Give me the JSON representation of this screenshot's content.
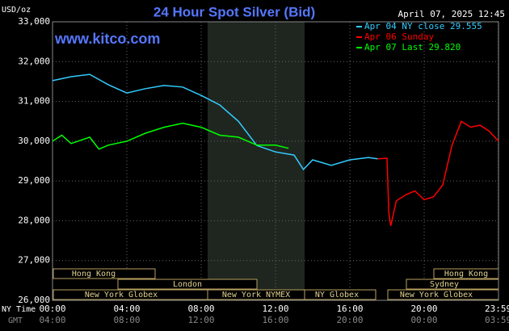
{
  "chart_data": {
    "type": "line",
    "title": "24 Hour Spot Silver (Bid)",
    "timestamp": "April 07, 2025 12:45",
    "watermark": "www.kitco.com",
    "y_label": "USD/oz",
    "x_row_labels": [
      "NY Time",
      "GMT"
    ],
    "xlim": [
      0,
      24
    ],
    "xticks": [
      {
        "value": 0,
        "label": "00:00"
      },
      {
        "value": 4,
        "label": "04:00"
      },
      {
        "value": 8,
        "label": "08:00"
      },
      {
        "value": 12,
        "label": "12:00"
      },
      {
        "value": 16,
        "label": "16:00"
      },
      {
        "value": 20,
        "label": "20:00"
      },
      {
        "value": 23.983,
        "label": "23:59"
      }
    ],
    "xticks_gmt": [
      "04:00",
      "08:00",
      "12:00",
      "16:00",
      "20:00",
      "00:00",
      "03:59"
    ],
    "ylim": [
      26000,
      33000
    ],
    "yticks": [
      {
        "value": 26000,
        "label": "26,000"
      },
      {
        "value": 27000,
        "label": "27,000"
      },
      {
        "value": 28000,
        "label": "28,000"
      },
      {
        "value": 29000,
        "label": "29,000"
      },
      {
        "value": 30000,
        "label": "30,000"
      },
      {
        "value": 31000,
        "label": "31,000"
      },
      {
        "value": 32000,
        "label": "32,000"
      },
      {
        "value": 33000,
        "label": "33,000"
      }
    ],
    "grid": true,
    "sessions": [
      "Hong Kong",
      "London",
      "New York Globex",
      "New York NYMEX",
      "NY Globex",
      "Hong Kong",
      "Sydney",
      "New York Globex"
    ],
    "series": [
      {
        "name": "Apr 04 NY close 29.555",
        "color": "#33ccff",
        "x": [
          0,
          1,
          2,
          3,
          4,
          5,
          6,
          7,
          8,
          9,
          10,
          11,
          12,
          13,
          13.5,
          14,
          15,
          16,
          17,
          17.5
        ],
        "values": [
          31520,
          31620,
          31680,
          31420,
          31210,
          31320,
          31400,
          31360,
          31150,
          30910,
          30500,
          29890,
          29730,
          29650,
          29290,
          29530,
          29390,
          29530,
          29590,
          29555
        ]
      },
      {
        "name": "Apr 06 Sunday",
        "color": "#ff0000",
        "x": [
          17.5,
          18.0,
          18.1,
          18.2,
          18.5,
          19,
          19.5,
          20,
          20.5,
          21,
          21.5,
          22,
          22.5,
          23,
          23.5,
          24
        ],
        "values": [
          29555,
          29570,
          28200,
          27870,
          28500,
          28650,
          28750,
          28530,
          28600,
          28900,
          29900,
          30500,
          30350,
          30400,
          30250,
          30000
        ]
      },
      {
        "name": "Apr 07 Last 29.820",
        "color": "#00ff00",
        "x": [
          0,
          0.5,
          1,
          2,
          2.5,
          3,
          4,
          5,
          6,
          7,
          8,
          9,
          10,
          11,
          12,
          12.7
        ],
        "values": [
          30000,
          30150,
          29940,
          30100,
          29800,
          29900,
          30000,
          30200,
          30350,
          30450,
          30350,
          30150,
          30100,
          29900,
          29900,
          29820
        ]
      }
    ]
  }
}
